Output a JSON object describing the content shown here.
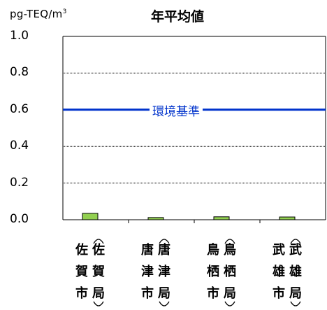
{
  "chart_data": {
    "type": "bar",
    "title": "年平均値",
    "unit": "pg-TEQ/m3",
    "ylim": [
      0,
      1.0
    ],
    "yticks": [
      "0.0",
      "0.2",
      "0.4",
      "0.6",
      "0.8",
      "1.0"
    ],
    "grid": true,
    "categories": [
      {
        "city": "佐賀市",
        "station": "佐賀局"
      },
      {
        "city": "唐津市",
        "station": "唐津局"
      },
      {
        "city": "鳥栖市",
        "station": "鳥栖局"
      },
      {
        "city": "武雄市",
        "station": "武雄局"
      }
    ],
    "values": [
      0.035,
      0.012,
      0.016,
      0.015
    ],
    "reference_line": {
      "label": "環境基準",
      "value": 0.6
    },
    "colors": {
      "bar": "#92d050",
      "reference": "#0033cc",
      "grid": "#000000"
    }
  }
}
